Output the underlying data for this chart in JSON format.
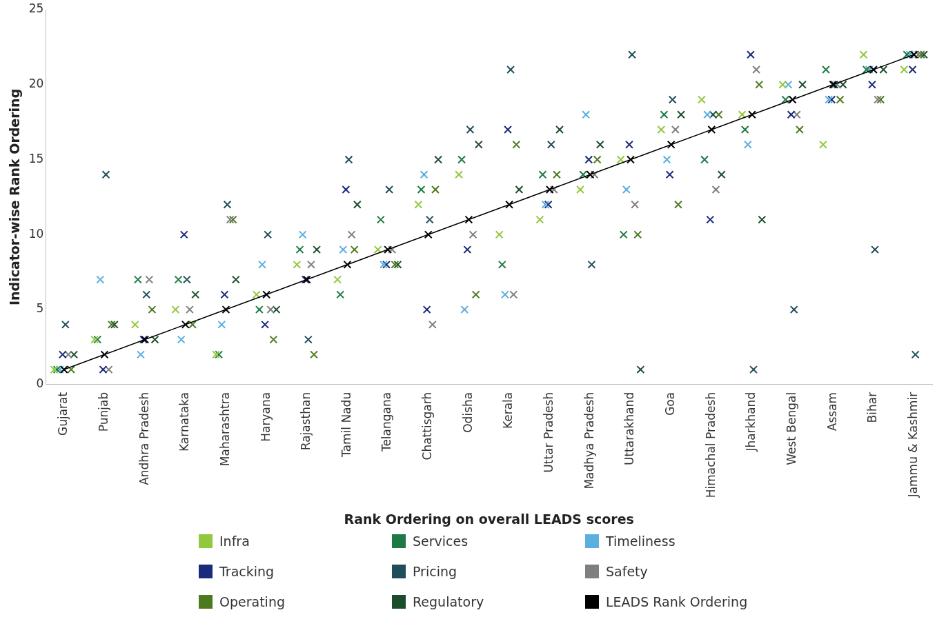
{
  "chart_data": {
    "type": "scatter",
    "xlabel": "Rank Ordering on overall LEADS scores",
    "ylabel": "Indicator-wise Rank Ordering",
    "categories": [
      "Gujarat",
      "Punjab",
      "Andhra Pradesh",
      "Karnataka",
      "Maharashtra",
      "Haryana",
      "Rajasthan",
      "Tamil Nadu",
      "Telangana",
      "Chattisgarh",
      "Odisha",
      "Kerala",
      "Uttar Pradesh",
      "Madhya Pradesh",
      "Uttarakhand",
      "Goa",
      "Himachal Pradesh",
      "Jharkhand",
      "West Bengal",
      "Assam",
      "Bihar",
      "Jammu & Kashmir"
    ],
    "ylim": [
      0,
      25
    ],
    "yticks": [
      0,
      5,
      10,
      15,
      20,
      25
    ],
    "grid": false,
    "legend": "bottom",
    "marker": "cross",
    "series": [
      {
        "name": "Infra",
        "color": "#92c83e",
        "values": [
          1,
          3,
          4,
          5,
          2,
          6,
          8,
          7,
          9,
          12,
          14,
          10,
          11,
          13,
          15,
          17,
          19,
          18,
          20,
          16,
          22,
          21
        ]
      },
      {
        "name": "Services",
        "color": "#1e7a45",
        "values": [
          1,
          3,
          7,
          7,
          2,
          5,
          9,
          6,
          11,
          13,
          15,
          8,
          14,
          14,
          10,
          18,
          15,
          17,
          19,
          21,
          21,
          22
        ]
      },
      {
        "name": "Timeliness",
        "color": "#5aaee0",
        "values": [
          1,
          7,
          2,
          3,
          4,
          8,
          10,
          9,
          8,
          14,
          5,
          6,
          12,
          18,
          13,
          15,
          18,
          16,
          20,
          19,
          21,
          22
        ]
      },
      {
        "name": "Tracking",
        "color": "#1a2a7a",
        "values": [
          2,
          1,
          3,
          10,
          6,
          4,
          7,
          13,
          8,
          5,
          9,
          17,
          12,
          15,
          16,
          14,
          11,
          22,
          18,
          19,
          20,
          21
        ]
      },
      {
        "name": "Pricing",
        "color": "#1f4e5a",
        "values": [
          4,
          14,
          6,
          7,
          12,
          10,
          3,
          15,
          13,
          11,
          17,
          21,
          16,
          8,
          22,
          19,
          18,
          1,
          5,
          20,
          9,
          2
        ]
      },
      {
        "name": "Safety",
        "color": "#7f7f7f",
        "values": [
          2,
          1,
          7,
          5,
          11,
          5,
          8,
          10,
          9,
          4,
          10,
          6,
          13,
          14,
          12,
          17,
          13,
          21,
          18,
          20,
          19,
          22
        ]
      },
      {
        "name": "Operating",
        "color": "#4e7a1e",
        "values": [
          1,
          4,
          5,
          4,
          11,
          3,
          2,
          9,
          8,
          13,
          6,
          16,
          14,
          15,
          10,
          12,
          18,
          20,
          17,
          19,
          19,
          22
        ]
      },
      {
        "name": "Regulatory",
        "color": "#1b4d2c",
        "values": [
          2,
          4,
          3,
          6,
          7,
          5,
          9,
          12,
          8,
          15,
          16,
          13,
          17,
          16,
          1,
          18,
          14,
          11,
          20,
          20,
          21,
          22
        ]
      },
      {
        "name": "LEADS Rank  Ordering",
        "type": "line",
        "color": "#000000",
        "values": [
          1,
          2,
          3,
          4,
          5,
          6,
          7,
          8,
          9,
          10,
          11,
          12,
          13,
          14,
          15,
          16,
          17,
          18,
          19,
          20,
          21,
          22
        ]
      }
    ]
  }
}
